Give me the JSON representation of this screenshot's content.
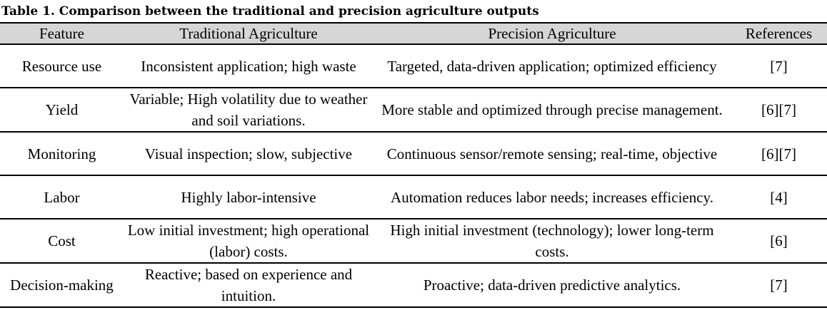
{
  "caption": "Table 1. Comparison between the traditional and precision agriculture outputs",
  "headers": {
    "feature": "Feature",
    "traditional": "Traditional Agriculture",
    "precision": "Precision Agriculture",
    "references": "References"
  },
  "rows": [
    {
      "feature": "Resource use",
      "traditional": "Inconsistent application; high waste",
      "precision": "Targeted, data-driven application; optimized efficiency",
      "references": "[7]"
    },
    {
      "feature": "Yield",
      "traditional": "Variable; High volatility due to weather and soil variations.",
      "precision": "More stable and optimized through precise management.",
      "references": "[6][7]"
    },
    {
      "feature": "Monitoring",
      "traditional": "Visual inspection; slow, subjective",
      "precision": "Continuous sensor/remote sensing; real-time, objective",
      "references": "[6][7]"
    },
    {
      "feature": "Labor",
      "traditional": "Highly labor-intensive",
      "precision": "Automation reduces labor needs; increases efficiency.",
      "references": "[4]"
    },
    {
      "feature": "Cost",
      "traditional": "Low initial investment; high operational (labor) costs.",
      "precision": "High initial investment (technology); lower long-term costs.",
      "references": "[6]"
    },
    {
      "feature": "Decision-making",
      "traditional": "Reactive; based on experience and intuition.",
      "precision": "Proactive; data-driven predictive analytics.",
      "references": "[7]"
    }
  ]
}
